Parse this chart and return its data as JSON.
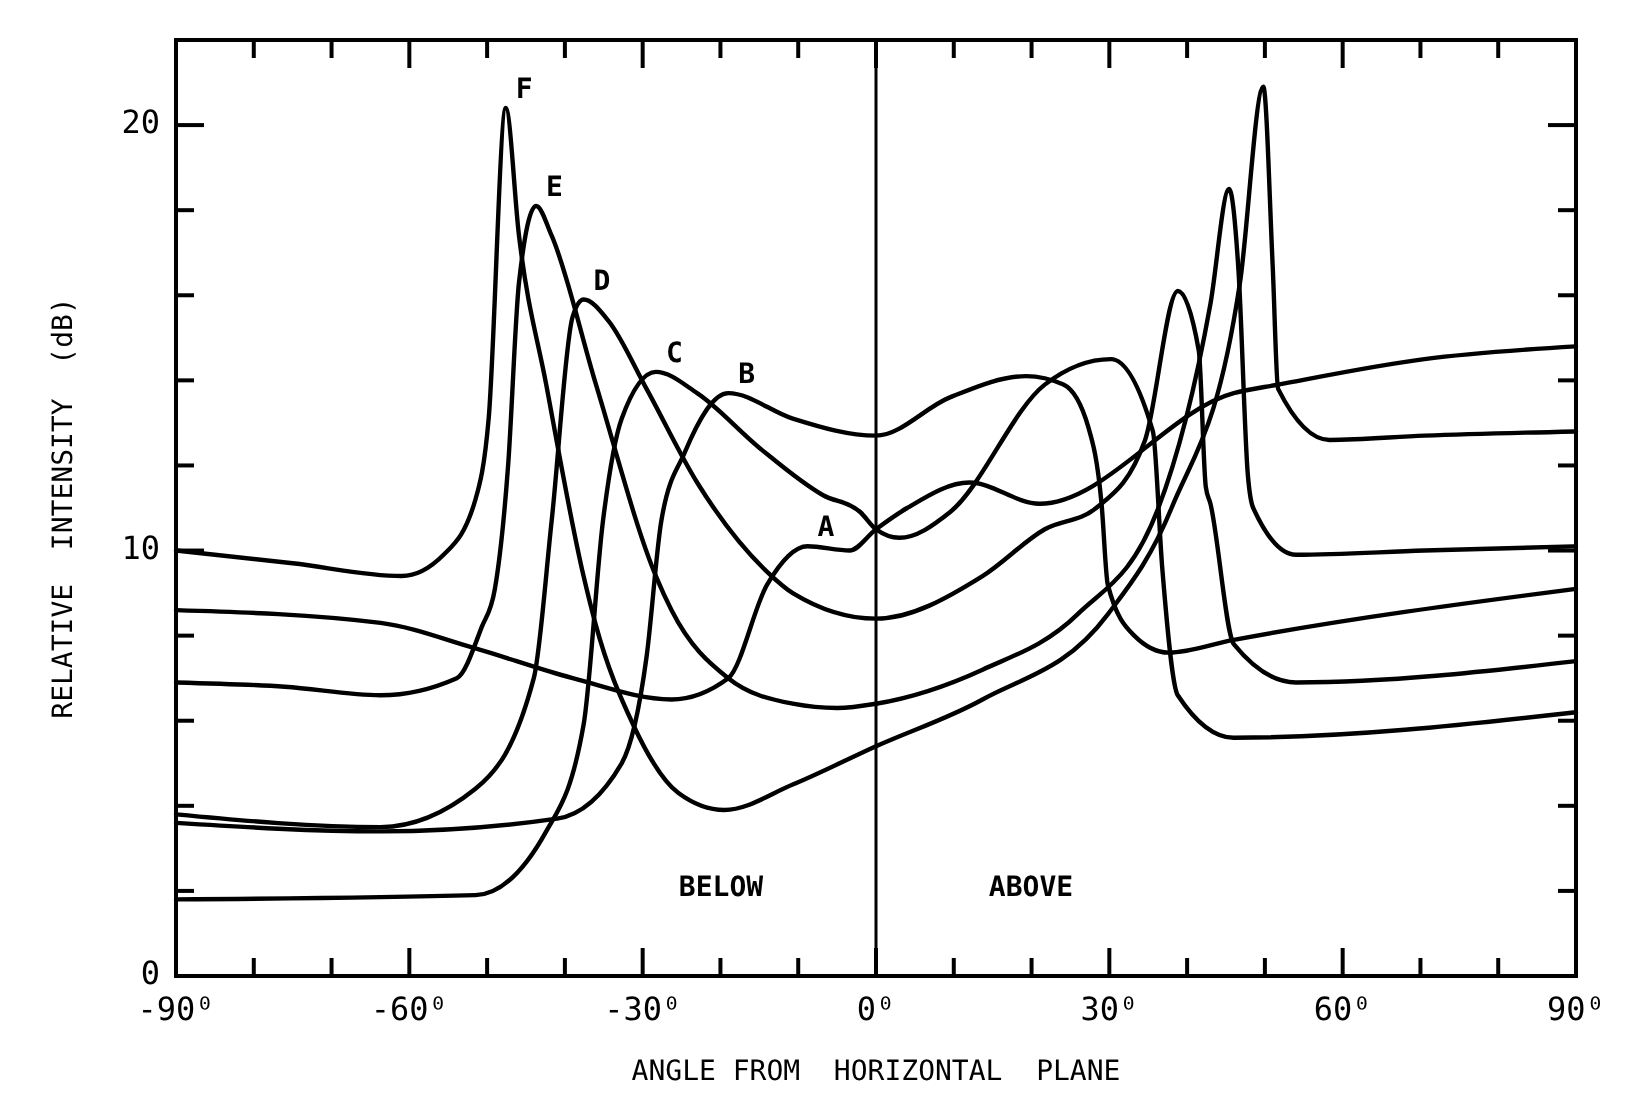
{
  "chart_data": {
    "type": "line",
    "xlabel": "ANGLE FROM  HORIZONTAL  PLANE",
    "ylabel": "RELATIVE  INTENSITY  (dB)",
    "xlim": [
      -90,
      90
    ],
    "ylim": [
      0,
      22
    ],
    "xticks": [
      {
        "value": -90,
        "label": "-90⁰"
      },
      {
        "value": -80,
        "label": null
      },
      {
        "value": -70,
        "label": null
      },
      {
        "value": -60,
        "label": "-60⁰"
      },
      {
        "value": -50,
        "label": null
      },
      {
        "value": -40,
        "label": null
      },
      {
        "value": -30,
        "label": "-30⁰"
      },
      {
        "value": -20,
        "label": null
      },
      {
        "value": -10,
        "label": null
      },
      {
        "value": 0,
        "label": "0⁰"
      },
      {
        "value": 10,
        "label": null
      },
      {
        "value": 20,
        "label": null
      },
      {
        "value": 30,
        "label": "30⁰"
      },
      {
        "value": 40,
        "label": null
      },
      {
        "value": 50,
        "label": null
      },
      {
        "value": 60,
        "label": "60⁰"
      },
      {
        "value": 70,
        "label": null
      },
      {
        "value": 80,
        "label": null
      },
      {
        "value": 90,
        "label": "90⁰"
      }
    ],
    "yticks": [
      0,
      {
        "value": 2,
        "label": null
      },
      {
        "value": 4,
        "label": null
      },
      {
        "value": 6,
        "label": null
      },
      {
        "value": 8,
        "label": null
      },
      10,
      {
        "value": 12,
        "label": null
      },
      {
        "value": 14,
        "label": null
      },
      {
        "value": 16,
        "label": null
      },
      {
        "value": 18,
        "label": null
      },
      20
    ],
    "grid": false,
    "marker": "none",
    "line_style": "solid",
    "ref_lines": [
      {
        "axis": "x",
        "value": 0,
        "color": "#000000"
      }
    ],
    "series": [
      {
        "name": "F",
        "color": "#000000",
        "x": [
          -90,
          -75,
          -61,
          -55.6,
          -51.5,
          -49.8,
          -47.6,
          -45.9,
          -42.4,
          -37.6,
          -36.1,
          -31.2,
          -25.4,
          -19.5,
          -10.7,
          0,
          13.7,
          29.8,
          38,
          46.8,
          49.8,
          51,
          51.7,
          58.3,
          70.5,
          90
        ],
        "values": [
          10.0,
          9.7,
          9.4,
          9.9,
          11.2,
          13.1,
          20.4,
          17.4,
          13.9,
          9.4,
          8.3,
          5.9,
          4.3,
          3.9,
          4.5,
          5.4,
          6.5,
          8.5,
          11.0,
          16.3,
          20.9,
          16.7,
          13.8,
          12.6,
          12.7,
          12.8
        ]
      },
      {
        "name": "E",
        "color": "#000000",
        "x": [
          -90,
          -76,
          -63.7,
          -53.9,
          -50.7,
          -49,
          -47.3,
          -45.9,
          -43.7,
          -41.7,
          -36,
          -28.3,
          -26.3,
          -19,
          -10.7,
          -5,
          0,
          13.7,
          25.9,
          36.3,
          43,
          45.4,
          46.6,
          47.8,
          48.5,
          54,
          70.5,
          90
        ],
        "values": [
          6.9,
          6.8,
          6.6,
          7.0,
          8.2,
          9.1,
          12.0,
          16.3,
          18.1,
          17.4,
          13.9,
          9.4,
          8.6,
          7.0,
          6.4,
          6.3,
          6.4,
          7.2,
          8.5,
          11.0,
          15.8,
          18.5,
          16.6,
          11.8,
          11.0,
          9.9,
          10.0,
          10.1
        ]
      },
      {
        "name": "D",
        "color": "#000000",
        "x": [
          -90,
          -63.7,
          -51.5,
          -44,
          -41.7,
          -39,
          -37.6,
          -34.4,
          -29.5,
          -23,
          -14,
          -10.7,
          0,
          13.7,
          21.7,
          28.3,
          34.6,
          38.8,
          41.5,
          42.4,
          43,
          46,
          54,
          90
        ],
        "values": [
          3.8,
          3.5,
          4.4,
          7.0,
          10.7,
          15.5,
          15.9,
          15.4,
          13.8,
          11.6,
          9.5,
          9.0,
          8.4,
          9.4,
          10.5,
          11.0,
          12.6,
          16.1,
          14.7,
          11.5,
          11.1,
          7.8,
          6.9,
          7.4
        ]
      },
      {
        "name": "C",
        "color": "#000000",
        "x": [
          -90,
          -51.5,
          -42.4,
          -37.6,
          -35.1,
          -32.7,
          -28.3,
          -23,
          -14.9,
          -6.8,
          -2,
          0,
          3,
          9.5,
          21.7,
          30.2,
          35.6,
          36.8,
          38.8,
          46,
          90
        ],
        "values": [
          1.8,
          1.9,
          3.4,
          5.9,
          10.7,
          13.1,
          14.2,
          13.7,
          12.4,
          11.3,
          10.9,
          10.5,
          10.3,
          10.9,
          13.9,
          14.5,
          12.8,
          9.6,
          6.6,
          5.6,
          6.2
        ]
      },
      {
        "name": "B",
        "color": "#000000",
        "x": [
          -90,
          -63.7,
          -41,
          -32.7,
          -29.5,
          -27.6,
          -24.6,
          -19,
          -10.7,
          0,
          9.5,
          19.3,
          24.1,
          27.3,
          29,
          29.8,
          33.2,
          37.6,
          46,
          90
        ],
        "values": [
          3.6,
          3.4,
          3.7,
          5.0,
          7.5,
          10.7,
          12.3,
          13.7,
          13.1,
          12.7,
          13.6,
          14.1,
          13.9,
          12.9,
          11.1,
          9.2,
          8.0,
          7.6,
          7.9,
          9.1
        ]
      },
      {
        "name": "A",
        "color": "#000000",
        "x": [
          -90,
          -63.7,
          -51.5,
          -39,
          -26.3,
          -19,
          -14,
          -8.8,
          -3.4,
          0,
          4,
          12,
          21,
          46,
          51.7,
          70.5,
          90
        ],
        "values": [
          8.6,
          8.3,
          7.7,
          7.0,
          6.5,
          7.0,
          9.2,
          10.1,
          10.0,
          10.5,
          11.0,
          11.6,
          11.1,
          13.7,
          13.9,
          14.5,
          14.8
        ]
      }
    ],
    "annotations": [
      "BELOW",
      "ABOVE"
    ]
  }
}
